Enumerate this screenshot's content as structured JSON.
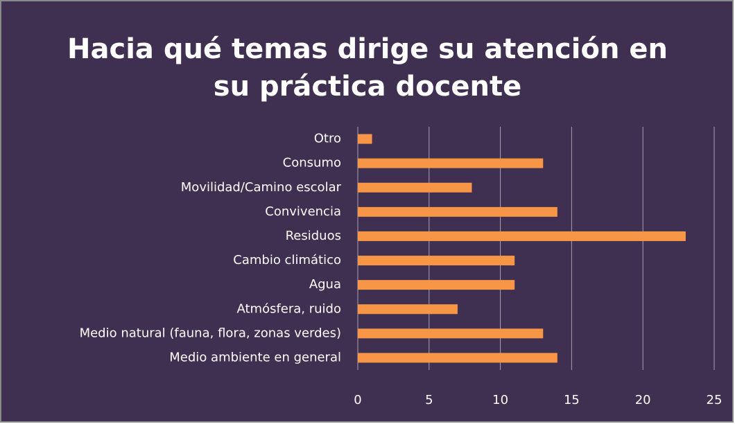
{
  "chart_data": {
    "type": "barh",
    "title": "Hacia qué temas dirige su atención en su práctica docente",
    "categories": [
      "Otro",
      "Consumo",
      "Movilidad/Camino escolar",
      "Convivencia",
      "Residuos",
      "Cambio climático",
      "Agua",
      "Atmósfera, ruido",
      "Medio natural (fauna, flora, zonas verdes)",
      "Medio ambiente en general"
    ],
    "values": [
      1,
      13,
      8,
      14,
      23,
      11,
      11,
      7,
      13,
      14
    ],
    "color": "#f79646",
    "xlim": [
      0,
      25
    ],
    "xticks": [
      0,
      5,
      10,
      15,
      20,
      25
    ],
    "grid": true
  }
}
